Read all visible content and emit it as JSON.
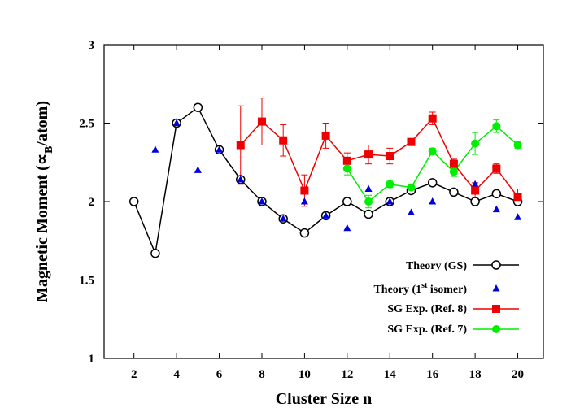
{
  "chart_data": {
    "type": "line",
    "xlabel": "Cluster Size n",
    "ylabel": "Magnetic Moment (∝B/atom)",
    "ylabel_parts": {
      "pre": "Magnetic Moment (∝",
      "sub": "B",
      "post": "/atom)"
    },
    "xlim": [
      0.6,
      21.2
    ],
    "ylim": [
      1,
      3
    ],
    "xticks": [
      2,
      4,
      6,
      8,
      10,
      12,
      14,
      16,
      18,
      20
    ],
    "yticks": [
      1,
      1.5,
      2,
      2.5,
      3
    ],
    "ytick_labels": [
      "1",
      "1.5",
      "2",
      "2.5",
      "3"
    ],
    "legend_position": "bottom-right",
    "series": [
      {
        "name": "Theory (GS)",
        "marker": "open-circle",
        "line": true,
        "color": "#000000",
        "x": [
          2,
          3,
          4,
          5,
          6,
          7,
          8,
          9,
          10,
          11,
          12,
          13,
          14,
          15,
          16,
          17,
          18,
          19,
          20
        ],
        "y": [
          2.0,
          1.67,
          2.5,
          2.6,
          2.33,
          2.14,
          2.0,
          1.89,
          1.8,
          1.91,
          2.0,
          1.92,
          2.0,
          2.07,
          2.12,
          2.06,
          2.0,
          2.05,
          2.0
        ]
      },
      {
        "name": "Theory (1st isomer)",
        "marker": "triangle",
        "line": false,
        "color": "#0000dd",
        "x": [
          3,
          4,
          5,
          6,
          7,
          8,
          9,
          10,
          11,
          12,
          13,
          14,
          15,
          16,
          17,
          18,
          19,
          20
        ],
        "y": [
          2.33,
          2.5,
          2.2,
          2.33,
          2.14,
          2.0,
          1.89,
          2.0,
          1.91,
          1.83,
          2.08,
          2.0,
          1.93,
          2.0,
          2.24,
          2.11,
          1.95,
          1.9
        ]
      },
      {
        "name": "SG Exp. (Ref. 8)",
        "marker": "square",
        "line": true,
        "color": "#ee0000",
        "x": [
          7,
          8,
          9,
          10,
          11,
          12,
          13,
          14,
          15,
          16,
          17,
          18,
          19,
          20
        ],
        "y": [
          2.36,
          2.51,
          2.39,
          2.07,
          2.42,
          2.26,
          2.3,
          2.29,
          2.38,
          2.53,
          2.24,
          2.07,
          2.21,
          2.03
        ],
        "err": [
          0.25,
          0.15,
          0.1,
          0.1,
          0.08,
          0.05,
          0.06,
          0.05,
          0.02,
          0.04,
          0.03,
          0.05,
          0.03,
          0.05
        ]
      },
      {
        "name": "SG Exp. (Ref. 7)",
        "marker": "circle",
        "line": true,
        "color": "#00ee00",
        "x": [
          12,
          13,
          14,
          15,
          16,
          17,
          18,
          19,
          20
        ],
        "y": [
          2.21,
          2.0,
          2.11,
          2.09,
          2.32,
          2.19,
          2.37,
          2.48,
          2.36
        ],
        "err": [
          0.04,
          0.04,
          0.02,
          0.02,
          0.02,
          0.03,
          0.07,
          0.04,
          0.02
        ]
      }
    ],
    "legend": [
      {
        "label": "Theory (GS)"
      },
      {
        "label_pre": "Theory (1",
        "label_sup": "st",
        "label_post": " isomer)"
      },
      {
        "label": "SG Exp. (Ref. 8)"
      },
      {
        "label": "SG Exp. (Ref. 7)"
      }
    ]
  }
}
